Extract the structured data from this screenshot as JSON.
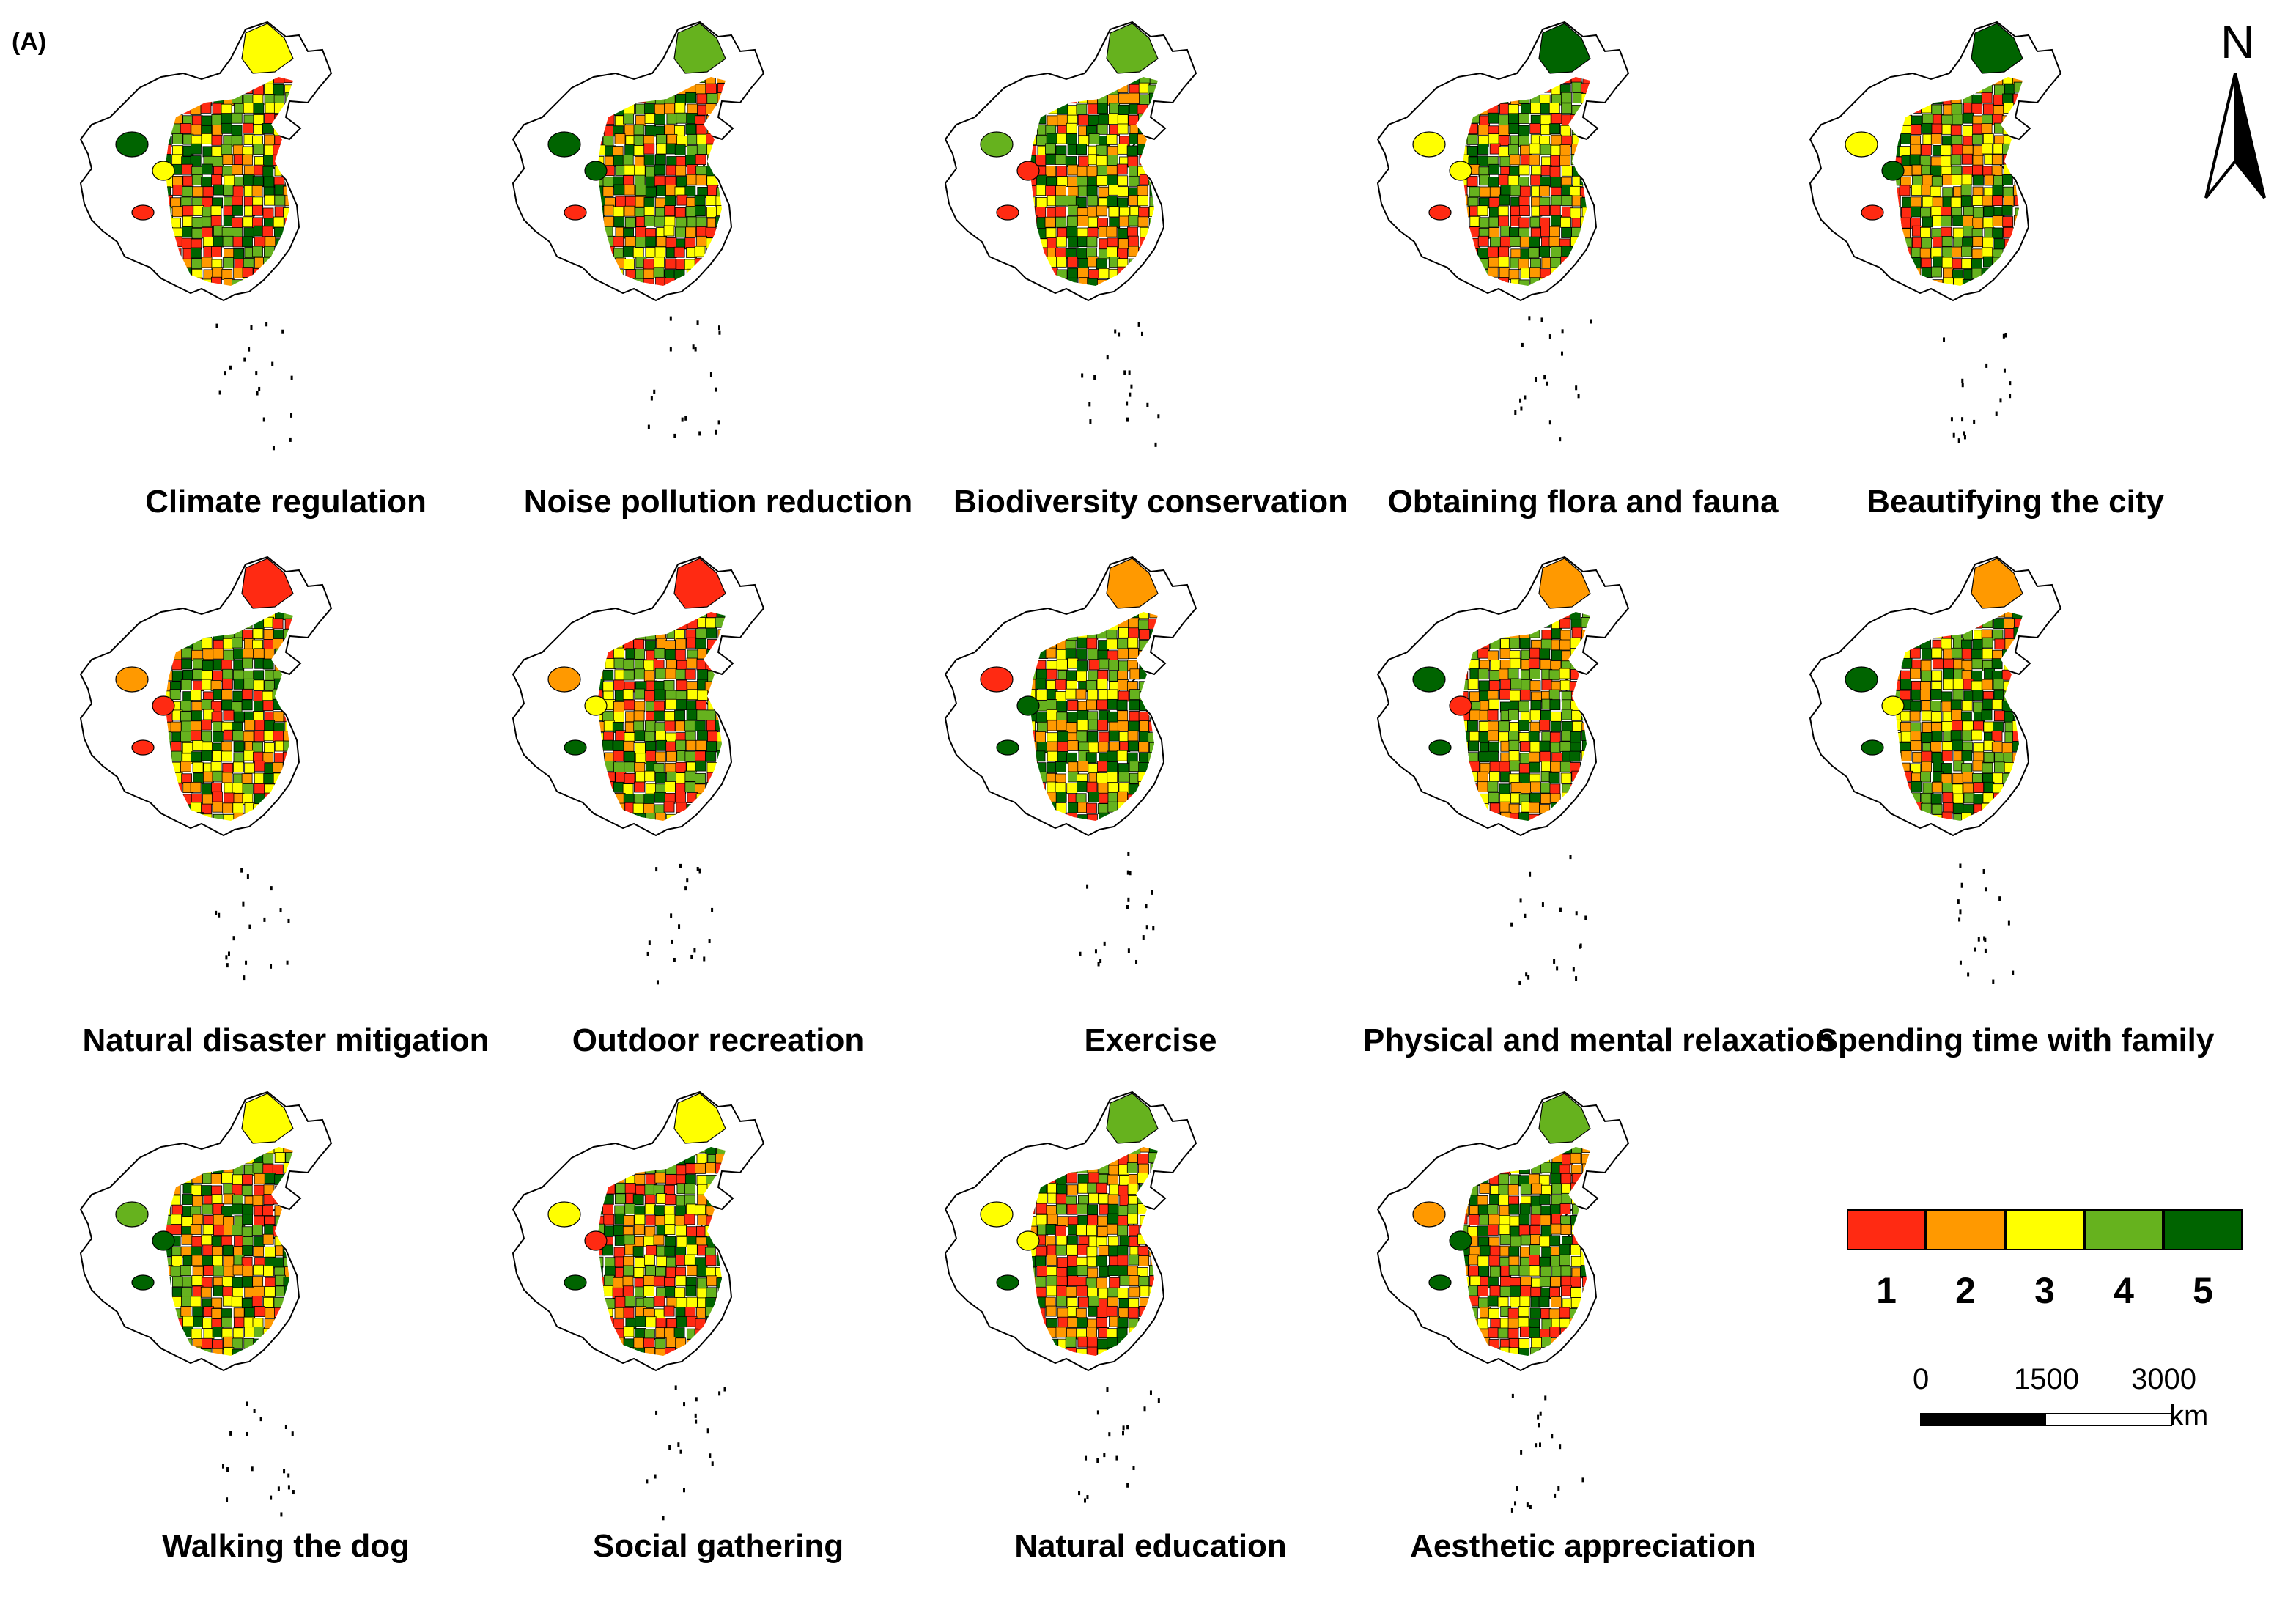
{
  "panel_label": "(A)",
  "north_label": "N",
  "colors": {
    "class_1": "#ff2a12",
    "class_2": "#ff9900",
    "class_3": "#ffff00",
    "class_4": "#66b21e",
    "class_5": "#006400",
    "outline": "#000000"
  },
  "maps": [
    {
      "title": "Climate regulation"
    },
    {
      "title": "Noise pollution reduction"
    },
    {
      "title": "Biodiversity conservation"
    },
    {
      "title": "Obtaining flora and fauna"
    },
    {
      "title": "Beautifying the city"
    },
    {
      "title": "Natural disaster mitigation"
    },
    {
      "title": "Outdoor recreation"
    },
    {
      "title": "Exercise"
    },
    {
      "title": "Physical and mental relaxation"
    },
    {
      "title": "Spending time with family"
    },
    {
      "title": "Walking the dog"
    },
    {
      "title": "Social gathering"
    },
    {
      "title": "Natural education"
    },
    {
      "title": "Aesthetic appreciation"
    }
  ],
  "legend": {
    "classes": [
      "1",
      "2",
      "3",
      "4",
      "5"
    ]
  },
  "scale": {
    "ticks": [
      "0",
      "1500",
      "3000"
    ],
    "unit": "km"
  }
}
